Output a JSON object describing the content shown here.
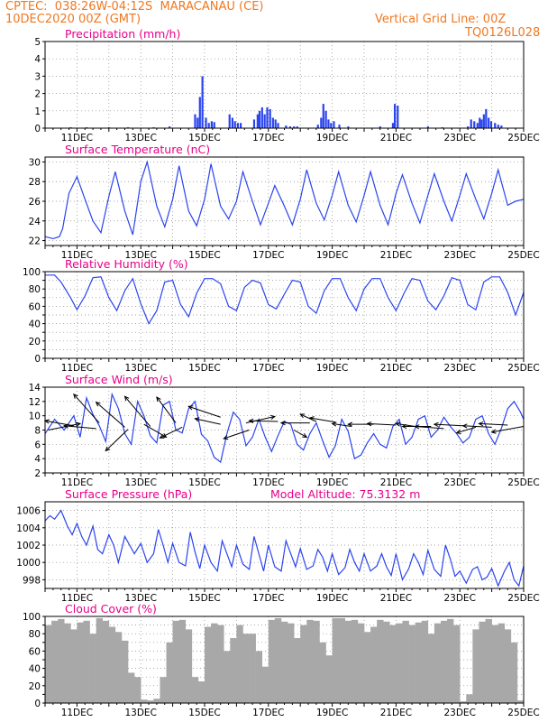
{
  "header": {
    "line1": "CPTEC:  038:26W-04:12S  MARACANAU (CE)",
    "line2": "10DEC2020 00Z (GMT)",
    "grid_note": "Vertical Grid Line: 00Z",
    "code": "TQ0126L028",
    "color": "#f07820"
  },
  "colors": {
    "title": "#e8008a",
    "line": "#2a44ee",
    "bar": "#2a44ee",
    "cloud": "#a8a8a8",
    "grid": "#888888"
  },
  "x_axis": {
    "start_day": 10,
    "end_day": 25,
    "tick_labels": [
      "11DEC",
      "13DEC",
      "15DEC",
      "17DEC",
      "19DEC",
      "21DEC",
      "23DEC",
      "25DEC"
    ],
    "tick_days": [
      11,
      13,
      15,
      17,
      19,
      21,
      23,
      25
    ]
  },
  "chart_data": [
    {
      "id": "precip",
      "type": "bar",
      "title": "Precipitation (mm/h)",
      "ylim": [
        0,
        5
      ],
      "yticks": [
        0,
        1,
        2,
        3,
        4,
        5
      ],
      "x_unit": "day of Dec 2020",
      "x": [
        10.8,
        11.3,
        12.0,
        12.6,
        13.4,
        13.9,
        14.7,
        14.78,
        14.85,
        14.93,
        15.04,
        15.13,
        15.22,
        15.3,
        15.78,
        15.87,
        15.95,
        16.04,
        16.13,
        16.55,
        16.66,
        16.72,
        16.8,
        16.88,
        16.96,
        17.05,
        17.14,
        17.22,
        17.3,
        17.55,
        17.68,
        17.8,
        17.9,
        18.55,
        18.65,
        18.72,
        18.8,
        18.88,
        18.96,
        19.05,
        19.22,
        19.5,
        20.5,
        20.9,
        20.96,
        21.05,
        22.0,
        22.45,
        23.25,
        23.35,
        23.45,
        23.55,
        23.62,
        23.68,
        23.75,
        23.82,
        23.9,
        23.98,
        24.1,
        24.2,
        24.3
      ],
      "values": [
        0.05,
        0.05,
        0.05,
        0.05,
        0.05,
        0.1,
        0.8,
        0.6,
        1.8,
        3.0,
        0.6,
        0.3,
        0.4,
        0.35,
        0.8,
        0.6,
        0.4,
        0.3,
        0.3,
        0.5,
        0.8,
        1.0,
        1.2,
        0.8,
        1.2,
        1.1,
        0.6,
        0.5,
        0.3,
        0.15,
        0.1,
        0.1,
        0.1,
        0.2,
        0.6,
        1.4,
        1.0,
        0.5,
        0.3,
        0.4,
        0.2,
        0.1,
        0.1,
        0.3,
        1.4,
        1.3,
        0.1,
        0.05,
        0.1,
        0.5,
        0.4,
        0.3,
        0.6,
        0.5,
        0.8,
        1.1,
        0.6,
        0.4,
        0.3,
        0.2,
        0.15
      ]
    },
    {
      "id": "temp",
      "type": "line",
      "title": "Surface Temperature (nC)",
      "ylim": [
        21.5,
        30.5
      ],
      "yticks": [
        22,
        24,
        26,
        28,
        30
      ],
      "x_unit": "day of Dec 2020",
      "x": [
        10.0,
        10.25,
        10.45,
        10.55,
        10.75,
        11.0,
        11.25,
        11.5,
        11.75,
        12.0,
        12.2,
        12.5,
        12.75,
        13.0,
        13.2,
        13.5,
        13.75,
        14.0,
        14.2,
        14.5,
        14.75,
        15.0,
        15.2,
        15.5,
        15.75,
        16.0,
        16.2,
        16.5,
        16.75,
        17.0,
        17.2,
        17.5,
        17.75,
        18.0,
        18.2,
        18.5,
        18.75,
        19.0,
        19.2,
        19.5,
        19.75,
        20.0,
        20.2,
        20.5,
        20.75,
        21.0,
        21.2,
        21.5,
        21.75,
        22.0,
        22.2,
        22.5,
        22.75,
        23.0,
        23.2,
        23.5,
        23.75,
        24.0,
        24.2,
        24.5,
        24.75,
        25.0
      ],
      "values": [
        22.4,
        22.2,
        22.4,
        23.2,
        26.8,
        28.5,
        26.2,
        24.0,
        22.8,
        26.5,
        29.0,
        25.0,
        22.6,
        28.0,
        30.0,
        25.5,
        23.4,
        26.2,
        29.6,
        25.0,
        23.5,
        26.2,
        29.8,
        25.5,
        24.2,
        26.0,
        29.0,
        26.0,
        23.6,
        25.8,
        27.6,
        25.5,
        23.6,
        26.2,
        29.2,
        25.8,
        24.1,
        26.6,
        29.0,
        25.6,
        23.9,
        26.6,
        29.0,
        25.6,
        23.6,
        26.8,
        28.7,
        25.8,
        23.8,
        26.6,
        28.8,
        26.0,
        24.0,
        26.6,
        28.8,
        26.2,
        24.2,
        26.8,
        29.2,
        25.6,
        26.0,
        26.2
      ]
    },
    {
      "id": "rh",
      "type": "line",
      "title": "Relative Humidity (%)",
      "ylim": [
        0,
        100
      ],
      "yticks": [
        0,
        10,
        20,
        30,
        40,
        50,
        60,
        70,
        80,
        90,
        100
      ],
      "x_unit": "day of Dec 2020",
      "x": [
        10.0,
        10.3,
        10.5,
        10.8,
        11.0,
        11.25,
        11.5,
        11.75,
        12.0,
        12.25,
        12.5,
        12.75,
        13.0,
        13.25,
        13.5,
        13.75,
        14.0,
        14.25,
        14.5,
        14.75,
        15.0,
        15.25,
        15.5,
        15.75,
        16.0,
        16.25,
        16.5,
        16.75,
        17.0,
        17.25,
        17.5,
        17.75,
        18.0,
        18.25,
        18.5,
        18.75,
        19.0,
        19.25,
        19.5,
        19.75,
        20.0,
        20.25,
        20.5,
        20.75,
        21.0,
        21.25,
        21.5,
        21.75,
        22.0,
        22.25,
        22.5,
        22.75,
        23.0,
        23.25,
        23.5,
        23.75,
        24.0,
        24.25,
        24.5,
        24.75,
        25.0
      ],
      "values": [
        96,
        96,
        88,
        70,
        56,
        72,
        93,
        94,
        70,
        55,
        78,
        92,
        63,
        40,
        55,
        88,
        90,
        62,
        48,
        75,
        92,
        92,
        86,
        60,
        55,
        82,
        90,
        87,
        62,
        57,
        74,
        90,
        88,
        60,
        52,
        78,
        92,
        92,
        70,
        55,
        80,
        92,
        92,
        70,
        55,
        75,
        92,
        90,
        66,
        56,
        72,
        93,
        90,
        62,
        56,
        88,
        94,
        94,
        76,
        50,
        76
      ]
    },
    {
      "id": "wind",
      "type": "line",
      "title": "Surface Wind (m/s)",
      "ylim": [
        2,
        14
      ],
      "yticks": [
        2,
        4,
        6,
        8,
        10,
        12,
        14
      ],
      "x_unit": "day of Dec 2020",
      "x": [
        10.0,
        10.3,
        10.6,
        10.9,
        11.1,
        11.3,
        11.5,
        11.7,
        11.9,
        12.1,
        12.3,
        12.5,
        12.7,
        12.9,
        13.1,
        13.3,
        13.5,
        13.7,
        13.9,
        14.1,
        14.3,
        14.5,
        14.7,
        14.9,
        15.1,
        15.3,
        15.5,
        15.7,
        15.9,
        16.1,
        16.3,
        16.5,
        16.7,
        16.9,
        17.1,
        17.3,
        17.5,
        17.7,
        17.9,
        18.1,
        18.3,
        18.5,
        18.7,
        18.9,
        19.1,
        19.3,
        19.5,
        19.7,
        19.9,
        20.1,
        20.3,
        20.5,
        20.7,
        20.9,
        21.1,
        21.3,
        21.5,
        21.7,
        21.9,
        22.1,
        22.3,
        22.5,
        22.7,
        22.9,
        23.1,
        23.3,
        23.5,
        23.7,
        23.9,
        24.1,
        24.3,
        24.5,
        24.7,
        24.9,
        25.0
      ],
      "values": [
        7.5,
        9.5,
        8.0,
        10.0,
        7.0,
        12.5,
        10.2,
        8.6,
        6.4,
        13.0,
        11.0,
        7.5,
        6.0,
        12.0,
        10.0,
        7.2,
        6.2,
        11.5,
        12.0,
        8.0,
        7.6,
        11.0,
        12.0,
        7.4,
        6.5,
        4.2,
        3.5,
        7.5,
        10.5,
        9.5,
        5.8,
        7.0,
        9.5,
        7.0,
        5.0,
        7.2,
        9.2,
        8.8,
        6.0,
        5.2,
        7.5,
        9.0,
        6.5,
        4.2,
        5.8,
        9.5,
        7.8,
        4.0,
        4.5,
        6.2,
        7.5,
        6.0,
        5.5,
        8.5,
        9.5,
        6.0,
        7.0,
        9.5,
        10.0,
        7.0,
        8.0,
        9.8,
        8.5,
        7.5,
        6.2,
        7.0,
        9.5,
        10.0,
        7.5,
        6.0,
        8.2,
        11.0,
        12.0,
        10.5,
        9.5
      ],
      "barbs": [
        {
          "x": 10.1,
          "y": 8.0,
          "dx": 1.0,
          "dy": 0.9
        },
        {
          "x": 10.9,
          "y": 8.6,
          "dx": -0.9,
          "dy": 0.7
        },
        {
          "x": 11.7,
          "y": 9.0,
          "dx": -0.8,
          "dy": 4.0
        },
        {
          "x": 11.6,
          "y": 8.2,
          "dx": -1.0,
          "dy": 0.4
        },
        {
          "x": 12.5,
          "y": 8.4,
          "dx": -0.9,
          "dy": 3.5
        },
        {
          "x": 12.6,
          "y": 8.1,
          "dx": -0.7,
          "dy": -3.0
        },
        {
          "x": 13.1,
          "y": 8.8,
          "dx": 0.7,
          "dy": -1.8
        },
        {
          "x": 13.3,
          "y": 8.5,
          "dx": -0.8,
          "dy": 4.2
        },
        {
          "x": 14.1,
          "y": 9.0,
          "dx": -0.6,
          "dy": 3.6
        },
        {
          "x": 14.3,
          "y": 8.4,
          "dx": -0.7,
          "dy": -1.5
        },
        {
          "x": 15.5,
          "y": 9.8,
          "dx": -1.0,
          "dy": 1.5
        },
        {
          "x": 15.5,
          "y": 8.8,
          "dx": -0.8,
          "dy": 0.8
        },
        {
          "x": 16.4,
          "y": 8.0,
          "dx": -0.8,
          "dy": -1.2
        },
        {
          "x": 16.3,
          "y": 9.0,
          "dx": 0.9,
          "dy": 0.9
        },
        {
          "x": 17.3,
          "y": 9.2,
          "dx": -0.9,
          "dy": 0.1
        },
        {
          "x": 17.8,
          "y": 8.0,
          "dx": 0.4,
          "dy": -1.0
        },
        {
          "x": 18.3,
          "y": 9.0,
          "dx": -0.9,
          "dy": 0.0
        },
        {
          "x": 18.5,
          "y": 9.2,
          "dx": -0.5,
          "dy": 1.0
        },
        {
          "x": 19.1,
          "y": 9.1,
          "dx": -0.8,
          "dy": 0.6
        },
        {
          "x": 19.6,
          "y": 8.5,
          "dx": -0.6,
          "dy": 0.4
        },
        {
          "x": 20.3,
          "y": 8.8,
          "dx": -0.8,
          "dy": 0.0
        },
        {
          "x": 21.0,
          "y": 8.7,
          "dx": -0.9,
          "dy": 0.2
        },
        {
          "x": 21.6,
          "y": 8.5,
          "dx": -0.6,
          "dy": 0.4
        },
        {
          "x": 22.1,
          "y": 8.5,
          "dx": -0.9,
          "dy": 0.0
        },
        {
          "x": 22.5,
          "y": 8.2,
          "dx": -0.9,
          "dy": 0.3
        },
        {
          "x": 23.1,
          "y": 8.6,
          "dx": -0.9,
          "dy": 0.2
        },
        {
          "x": 23.5,
          "y": 8.4,
          "dx": -0.6,
          "dy": -0.8
        },
        {
          "x": 24.0,
          "y": 8.4,
          "dx": -0.9,
          "dy": 0.2
        },
        {
          "x": 24.5,
          "y": 8.7,
          "dx": -0.9,
          "dy": 0.2
        },
        {
          "x": 25.0,
          "y": 8.5,
          "dx": -1.0,
          "dy": -0.8
        }
      ]
    },
    {
      "id": "pres",
      "type": "line",
      "title": "Surface Pressure (hPa)",
      "annotation": "Model Altitude: 75.3132 m",
      "ylim": [
        997,
        1007
      ],
      "yticks": [
        998,
        1000,
        1002,
        1004,
        1006
      ],
      "x_unit": "day of Dec 2020",
      "x": [
        10.0,
        10.15,
        10.3,
        10.5,
        10.7,
        10.85,
        11.0,
        11.15,
        11.3,
        11.5,
        11.65,
        11.8,
        12.0,
        12.15,
        12.3,
        12.5,
        12.65,
        12.8,
        13.0,
        13.2,
        13.4,
        13.55,
        13.7,
        13.85,
        14.0,
        14.2,
        14.4,
        14.55,
        14.7,
        14.85,
        15.0,
        15.2,
        15.4,
        15.55,
        15.7,
        15.85,
        16.0,
        16.2,
        16.4,
        16.55,
        16.7,
        16.85,
        17.0,
        17.2,
        17.4,
        17.55,
        17.7,
        17.85,
        18.0,
        18.2,
        18.4,
        18.55,
        18.7,
        18.85,
        19.0,
        19.2,
        19.4,
        19.55,
        19.7,
        19.85,
        20.0,
        20.2,
        20.4,
        20.55,
        20.7,
        20.85,
        21.0,
        21.2,
        21.4,
        21.55,
        21.7,
        21.85,
        22.0,
        22.2,
        22.4,
        22.55,
        22.7,
        22.85,
        23.0,
        23.2,
        23.4,
        23.55,
        23.7,
        23.85,
        24.0,
        24.2,
        24.4,
        24.55,
        24.7,
        24.85,
        25.0
      ],
      "values": [
        1004.8,
        1005.4,
        1005.0,
        1006.0,
        1004.2,
        1003.2,
        1004.5,
        1003.0,
        1002.0,
        1004.2,
        1001.5,
        1001.0,
        1003.2,
        1002.0,
        1000.0,
        1003.0,
        1002.0,
        1001.0,
        1002.2,
        1000.0,
        1001.0,
        1003.8,
        1002.0,
        1000.0,
        1002.2,
        1000.0,
        999.6,
        1003.5,
        1001.2,
        999.3,
        1002.0,
        1000.0,
        999.0,
        1002.5,
        1001.0,
        999.5,
        1002.0,
        999.8,
        999.2,
        1003.0,
        1001.0,
        999.0,
        1002.0,
        999.5,
        999.0,
        1002.5,
        1001.0,
        999.5,
        1001.6,
        999.2,
        999.6,
        1001.5,
        1000.6,
        999.0,
        1001.0,
        998.6,
        999.4,
        1001.5,
        1000.0,
        999.0,
        1001.0,
        999.0,
        999.6,
        1001.0,
        999.5,
        998.5,
        1001.0,
        998.0,
        999.3,
        1001.0,
        1000.0,
        998.6,
        1001.4,
        999.2,
        998.4,
        1002.0,
        1000.4,
        998.4,
        999.0,
        997.6,
        999.2,
        999.5,
        998.0,
        998.3,
        999.3,
        997.3,
        999.0,
        1000.0,
        998.0,
        997.3,
        999.6
      ]
    },
    {
      "id": "cloud",
      "type": "bar",
      "title": "Cloud Cover (%)",
      "ylim": [
        0,
        100
      ],
      "yticks": [
        0,
        10,
        20,
        30,
        40,
        50,
        60,
        70,
        80,
        90,
        100
      ],
      "x_unit": "day of Dec 2020",
      "x": [
        10.0,
        10.2,
        10.4,
        10.6,
        10.8,
        11.0,
        11.2,
        11.4,
        11.6,
        11.8,
        12.0,
        12.2,
        12.4,
        12.6,
        12.8,
        13.0,
        13.2,
        13.4,
        13.6,
        13.8,
        14.0,
        14.2,
        14.4,
        14.6,
        14.8,
        15.0,
        15.2,
        15.4,
        15.6,
        15.8,
        16.0,
        16.2,
        16.4,
        16.6,
        16.8,
        17.0,
        17.2,
        17.4,
        17.6,
        17.8,
        18.0,
        18.2,
        18.4,
        18.6,
        18.8,
        19.0,
        19.2,
        19.4,
        19.6,
        19.8,
        20.0,
        20.2,
        20.4,
        20.6,
        20.8,
        21.0,
        21.2,
        21.4,
        21.6,
        21.8,
        22.0,
        22.2,
        22.4,
        22.6,
        22.8,
        23.0,
        23.2,
        23.4,
        23.6,
        23.8,
        24.0,
        24.2,
        24.4,
        24.6,
        24.8,
        25.0
      ],
      "values": [
        90,
        95,
        97,
        92,
        85,
        93,
        95,
        80,
        98,
        95,
        88,
        82,
        72,
        35,
        30,
        4,
        3,
        5,
        30,
        70,
        95,
        96,
        85,
        30,
        25,
        88,
        92,
        90,
        60,
        75,
        90,
        80,
        80,
        60,
        42,
        96,
        98,
        94,
        92,
        75,
        90,
        96,
        95,
        70,
        55,
        98,
        98,
        95,
        96,
        92,
        82,
        88,
        96,
        94,
        90,
        92,
        95,
        90,
        93,
        95,
        80,
        92,
        95,
        97,
        90,
        2,
        10,
        85,
        94,
        97,
        90,
        92,
        85,
        70,
        3,
        5
      ]
    }
  ]
}
